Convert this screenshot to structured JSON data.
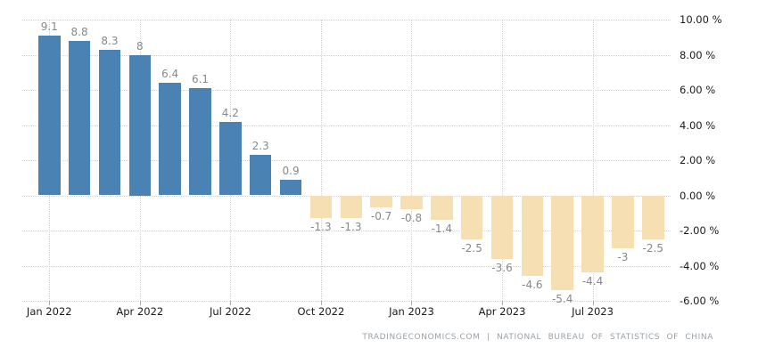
{
  "chart_data": {
    "type": "bar",
    "title": "",
    "unit": "%",
    "values": [
      9.1,
      8.8,
      8.3,
      8,
      6.4,
      6.1,
      4.2,
      2.3,
      0.9,
      -1.3,
      -1.3,
      -0.7,
      -0.8,
      -1.4,
      -2.5,
      -3.6,
      -4.6,
      -5.4,
      -4.4,
      -3,
      -2.5
    ],
    "bar_labels": [
      "9.1",
      "8.8",
      "8.3",
      "8",
      "6.4",
      "6.1",
      "4.2",
      "2.3",
      "0.9",
      "-1.3",
      "-1.3",
      "-0.7",
      "-0.8",
      "-1.4",
      "-2.5",
      "-3.6",
      "-4.6",
      "-5.4",
      "-4.4",
      "-3",
      "-2.5"
    ],
    "x_ticks": [
      {
        "label": "Jan 2022",
        "bar_index": 0
      },
      {
        "label": "Apr 2022",
        "bar_index": 3
      },
      {
        "label": "Jul 2022",
        "bar_index": 6
      },
      {
        "label": "Oct 2022",
        "bar_index": 9
      },
      {
        "label": "Jan 2023",
        "bar_index": 12
      },
      {
        "label": "Apr 2023",
        "bar_index": 15
      },
      {
        "label": "Jul 2023",
        "bar_index": 18
      }
    ],
    "y_ticks": [
      "10.00 %",
      "8.00 %",
      "6.00 %",
      "4.00 %",
      "2.00 %",
      "0.00 %",
      "-2.00 %",
      "-4.00 %",
      "-6.00 %"
    ],
    "ylim": [
      -6,
      10
    ],
    "grid": "dotted",
    "legend": "none",
    "colors": {
      "positive_bar": "#4a82b4",
      "negative_bar": "#f5dfb3",
      "grid": "#d2d2d2",
      "bar_label": "#85898e",
      "axis_label": "#1b1b1b"
    }
  },
  "footer": {
    "text": "TRADINGECONOMICS.COM | NATIONAL BUREAU OF STATISTICS OF CHINA"
  }
}
